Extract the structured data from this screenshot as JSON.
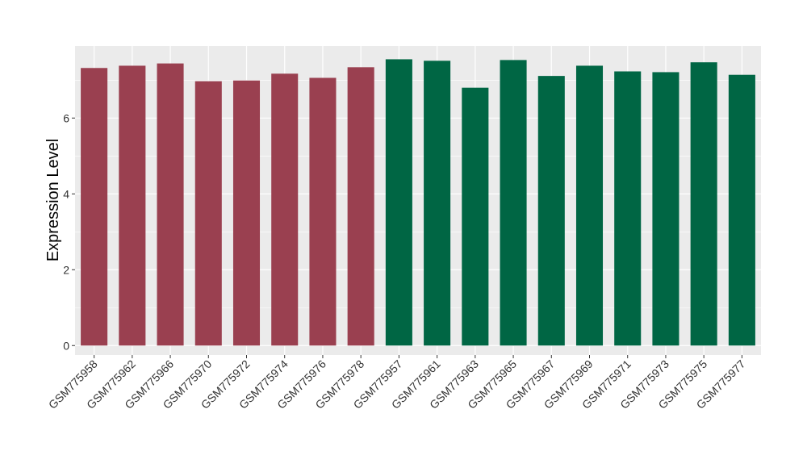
{
  "chart_data": {
    "type": "bar",
    "title": "",
    "xlabel": "",
    "ylabel": "Expression Level",
    "ylim": [
      -0.25,
      7.9
    ],
    "yticks": [
      0,
      2,
      4,
      6
    ],
    "ytick_labels": [
      "0",
      "2",
      "4",
      "6"
    ],
    "grid": true,
    "legend": "none",
    "panel_background": "#EBEBEB",
    "grid_color": "#FFFFFF",
    "categories": [
      "GSM775958",
      "GSM775962",
      "GSM775966",
      "GSM775970",
      "GSM775972",
      "GSM775974",
      "GSM775976",
      "GSM775978",
      "GSM775957",
      "GSM775961",
      "GSM775963",
      "GSM775965",
      "GSM775967",
      "GSM775969",
      "GSM775971",
      "GSM775973",
      "GSM775975",
      "GSM775977"
    ],
    "values": [
      7.32,
      7.38,
      7.44,
      6.97,
      6.99,
      7.17,
      7.06,
      7.34,
      7.55,
      7.51,
      6.8,
      7.53,
      7.11,
      7.38,
      7.23,
      7.21,
      7.47,
      7.14
    ],
    "bar_colors": [
      "#9A4050",
      "#9A4050",
      "#9A4050",
      "#9A4050",
      "#9A4050",
      "#9A4050",
      "#9A4050",
      "#9A4050",
      "#006644",
      "#006644",
      "#006644",
      "#006644",
      "#006644",
      "#006644",
      "#006644",
      "#006644",
      "#006644",
      "#006644"
    ]
  }
}
